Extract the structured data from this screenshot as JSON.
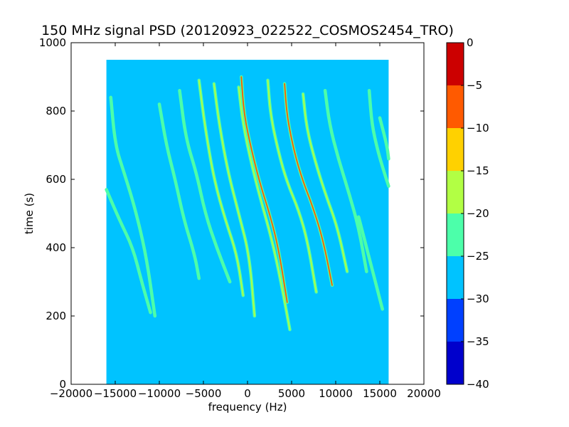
{
  "chart_data": {
    "type": "heatmap",
    "title": "150 MHz signal PSD (20120923_022522_COSMOS2454_TRO)",
    "xlabel": "frequency (Hz)",
    "ylabel": "time (s)",
    "xlim": [
      -20000,
      20000
    ],
    "ylim": [
      0,
      1000
    ],
    "x_ticks": [
      {
        "value": -20000,
        "label": "−20000"
      },
      {
        "value": -15000,
        "label": "−15000"
      },
      {
        "value": -10000,
        "label": "−10000"
      },
      {
        "value": -5000,
        "label": "−5000"
      },
      {
        "value": 0,
        "label": "0"
      },
      {
        "value": 5000,
        "label": "5000"
      },
      {
        "value": 10000,
        "label": "10000"
      },
      {
        "value": 15000,
        "label": "15000"
      },
      {
        "value": 20000,
        "label": "20000"
      }
    ],
    "y_ticks": [
      {
        "value": 0,
        "label": "0"
      },
      {
        "value": 200,
        "label": "200"
      },
      {
        "value": 400,
        "label": "400"
      },
      {
        "value": 600,
        "label": "600"
      },
      {
        "value": 800,
        "label": "800"
      },
      {
        "value": 1000,
        "label": "1000"
      }
    ],
    "data_extent": {
      "x": [
        -16000,
        16000
      ],
      "y": [
        0,
        950
      ]
    },
    "background_level": -27.5,
    "grid": false,
    "colorbar": {
      "levels": [
        {
          "lo": -40,
          "hi": -35,
          "color": "#0000cc"
        },
        {
          "lo": -35,
          "hi": -30,
          "color": "#0040ff"
        },
        {
          "lo": -30,
          "hi": -25,
          "color": "#00c3ff"
        },
        {
          "lo": -25,
          "hi": -20,
          "color": "#4cffaa"
        },
        {
          "lo": -20,
          "hi": -15,
          "color": "#b2ff44"
        },
        {
          "lo": -15,
          "hi": -10,
          "color": "#ffd100"
        },
        {
          "lo": -10,
          "hi": -5,
          "color": "#ff5a00"
        },
        {
          "lo": -5,
          "hi": 0,
          "color": "#cc0000"
        }
      ],
      "ticks": [
        {
          "value": 0,
          "label": "0"
        },
        {
          "value": -5,
          "label": "−5"
        },
        {
          "value": -10,
          "label": "−10"
        },
        {
          "value": -15,
          "label": "−15"
        },
        {
          "value": -20,
          "label": "−20"
        },
        {
          "value": -25,
          "label": "−25"
        },
        {
          "value": -30,
          "label": "−30"
        },
        {
          "value": -35,
          "label": "−35"
        },
        {
          "value": -40,
          "label": "−40"
        }
      ]
    },
    "series": [
      {
        "level": -22,
        "points": [
          [
            -15500,
            840
          ],
          [
            -15000,
            700
          ],
          [
            -14000,
            620
          ],
          [
            -12800,
            520
          ],
          [
            -11500,
            380
          ],
          [
            -10500,
            200
          ]
        ]
      },
      {
        "level": -22,
        "points": [
          [
            -16000,
            570
          ],
          [
            -14500,
            480
          ],
          [
            -13000,
            400
          ],
          [
            -12000,
            300
          ],
          [
            -11000,
            210
          ]
        ]
      },
      {
        "level": -22,
        "points": [
          [
            -10000,
            820
          ],
          [
            -9200,
            700
          ],
          [
            -8200,
            600
          ],
          [
            -7200,
            480
          ],
          [
            -6000,
            380
          ],
          [
            -5500,
            310
          ]
        ]
      },
      {
        "level": -20,
        "points": [
          [
            -7700,
            860
          ],
          [
            -7000,
            720
          ],
          [
            -5800,
            620
          ],
          [
            -4800,
            500
          ],
          [
            -3500,
            400
          ],
          [
            -2000,
            300
          ]
        ]
      },
      {
        "level": -18,
        "points": [
          [
            -5500,
            890
          ],
          [
            -4800,
            750
          ],
          [
            -3800,
            600
          ],
          [
            -2500,
            480
          ],
          [
            -1200,
            380
          ],
          [
            -500,
            260
          ]
        ]
      },
      {
        "level": -16,
        "points": [
          [
            -3800,
            880
          ],
          [
            -3200,
            760
          ],
          [
            -2200,
            620
          ],
          [
            -1000,
            500
          ],
          [
            200,
            380
          ],
          [
            800,
            200
          ]
        ]
      },
      {
        "level": -15,
        "points": [
          [
            -1000,
            870
          ],
          [
            -500,
            760
          ],
          [
            500,
            640
          ],
          [
            1500,
            540
          ],
          [
            2800,
            420
          ],
          [
            3800,
            300
          ],
          [
            4800,
            160
          ]
        ]
      },
      {
        "level": -6,
        "points": [
          [
            -700,
            900
          ],
          [
            -400,
            790
          ],
          [
            500,
            680
          ],
          [
            1500,
            580
          ],
          [
            2500,
            500
          ],
          [
            3500,
            400
          ],
          [
            4500,
            240
          ]
        ]
      },
      {
        "level": -15,
        "points": [
          [
            2300,
            890
          ],
          [
            2600,
            790
          ],
          [
            3500,
            680
          ],
          [
            4500,
            590
          ],
          [
            5800,
            510
          ],
          [
            6800,
            420
          ],
          [
            7800,
            270
          ]
        ]
      },
      {
        "level": -6,
        "points": [
          [
            4200,
            880
          ],
          [
            4500,
            780
          ],
          [
            5300,
            680
          ],
          [
            6200,
            600
          ],
          [
            7400,
            520
          ],
          [
            8600,
            420
          ],
          [
            9600,
            290
          ]
        ]
      },
      {
        "level": -18,
        "points": [
          [
            6300,
            850
          ],
          [
            6700,
            750
          ],
          [
            7700,
            650
          ],
          [
            8800,
            560
          ],
          [
            10200,
            460
          ],
          [
            11300,
            330
          ]
        ]
      },
      {
        "level": -20,
        "points": [
          [
            8800,
            860
          ],
          [
            9300,
            760
          ],
          [
            10300,
            660
          ],
          [
            11500,
            560
          ],
          [
            12600,
            460
          ],
          [
            13500,
            330
          ]
        ]
      },
      {
        "level": -22,
        "points": [
          [
            13800,
            860
          ],
          [
            14100,
            760
          ],
          [
            14800,
            680
          ],
          [
            15500,
            620
          ],
          [
            16000,
            580
          ]
        ]
      },
      {
        "level": -22,
        "points": [
          [
            12600,
            490
          ],
          [
            13300,
            420
          ],
          [
            14300,
            320
          ],
          [
            15300,
            220
          ]
        ]
      },
      {
        "level": -22,
        "points": [
          [
            15000,
            780
          ],
          [
            15800,
            700
          ],
          [
            16000,
            660
          ]
        ]
      }
    ]
  }
}
